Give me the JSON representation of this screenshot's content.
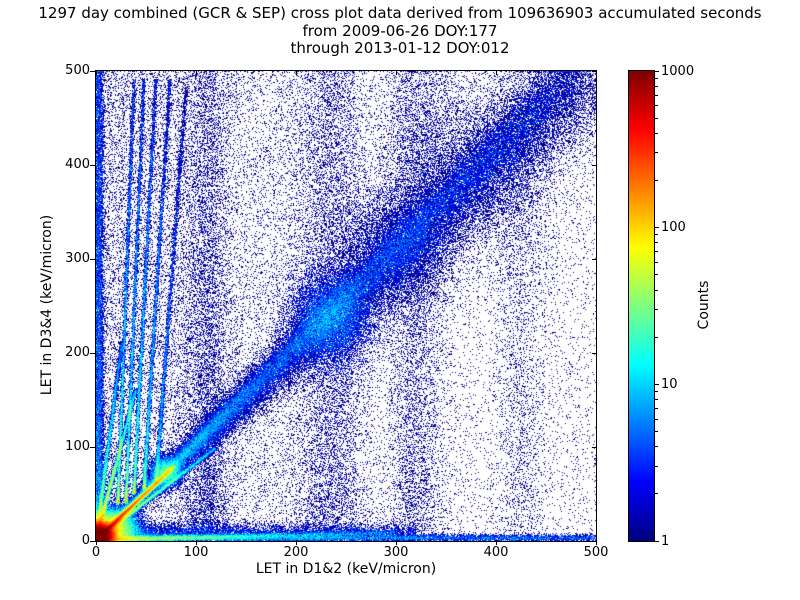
{
  "chart_data": {
    "type": "heatmap",
    "title": "1297 day combined (GCR & SEP) cross plot data derived from 109636903 accumulated seconds",
    "subtitle1": "from 2009-06-26 DOY:177",
    "subtitle2": "through 2013-01-12 DOY:012",
    "xlabel": "LET in D1&2 (keV/micron)",
    "ylabel": "LET in D3&4 (keV/micron)",
    "xlim": [
      0,
      500
    ],
    "ylim": [
      0,
      500
    ],
    "xticks": [
      0,
      100,
      200,
      300,
      400,
      500
    ],
    "yticks": [
      0,
      100,
      200,
      300,
      400,
      500
    ],
    "grid": false,
    "colorbar": {
      "label": "Counts",
      "scale": "log",
      "min": 1,
      "max": 1000,
      "ticks": [
        1,
        10,
        100,
        1000
      ],
      "colormap": "jet",
      "color_low": "#00007f",
      "color_high": "#7f0000"
    },
    "features": [
      {
        "kind": "uniform",
        "x0": 0,
        "x1": 500,
        "y0": 0,
        "y1": 500,
        "n": 14000,
        "w": 1
      },
      {
        "kind": "uniform",
        "x0": 0,
        "x1": 260,
        "y0": 0,
        "y1": 500,
        "n": 9000,
        "w": 1
      },
      {
        "kind": "uniform",
        "x0": 0,
        "x1": 120,
        "y0": 0,
        "y1": 500,
        "n": 6000,
        "w": 1
      },
      {
        "kind": "vcloud",
        "cx": 3,
        "sx": 2.5,
        "y0": 0,
        "y1": 500,
        "n": 12000,
        "w": 1.2,
        "bias": 1.6
      },
      {
        "kind": "hcloud",
        "cy": 2,
        "sy": 2,
        "x0": 0,
        "x1": 500,
        "n": 15000,
        "w": 1.5,
        "bias": 2.2
      },
      {
        "kind": "band",
        "x0": 0,
        "y0": 0,
        "x1": 500,
        "y1": 500,
        "w0": 4,
        "w1": 55,
        "n": 42000,
        "wt": 1,
        "bias": 1.25
      },
      {
        "kind": "band",
        "x0": 0,
        "y0": 0,
        "x1": 480,
        "y1": 500,
        "w0": 2,
        "w1": 28,
        "n": 24000,
        "wt": 1,
        "bias": 1.15
      },
      {
        "kind": "gauss",
        "cx": 235,
        "cy": 235,
        "sx": 22,
        "sy": 26,
        "n": 9000,
        "w": 1.5
      },
      {
        "kind": "gauss",
        "cx": 300,
        "cy": 310,
        "sx": 30,
        "sy": 35,
        "n": 7000,
        "w": 1
      },
      {
        "kind": "gauss",
        "cx": 370,
        "cy": 395,
        "sx": 45,
        "sy": 50,
        "n": 6000,
        "w": 1
      },
      {
        "kind": "gauss",
        "cx": 5,
        "cy": 5,
        "sx": 6,
        "sy": 6,
        "n": 90000,
        "w": 4
      },
      {
        "kind": "gauss",
        "cx": 14,
        "cy": 12,
        "sx": 12,
        "sy": 10,
        "n": 30000,
        "w": 2
      },
      {
        "kind": "line",
        "x0": 0,
        "y0": 0,
        "x1": 78,
        "y1": 78,
        "wd": 2.5,
        "n": 26000,
        "wt0": 5,
        "wt1": 1.5,
        "bias": 1.8
      },
      {
        "kind": "line",
        "x0": 0,
        "y0": 0,
        "x1": 120,
        "y1": 98,
        "wd": 2,
        "n": 8000,
        "wt0": 3,
        "wt1": 0.8,
        "bias": 2.2
      },
      {
        "kind": "line",
        "x0": 0,
        "y0": 0,
        "x1": 40,
        "y1": 160,
        "wd": 2,
        "n": 8000,
        "wt0": 4,
        "wt1": 1,
        "bias": 2
      },
      {
        "kind": "line",
        "x0": 0,
        "y0": 0,
        "x1": 26,
        "y1": 210,
        "wd": 2,
        "n": 6000,
        "wt0": 3.5,
        "wt1": 0.8,
        "bias": 2.1
      },
      {
        "kind": "line",
        "x0": 22,
        "y0": 40,
        "x1": 38,
        "y1": 490,
        "wd": 1.6,
        "n": 5200,
        "wt0": 3,
        "wt1": 0.8,
        "bias": 1.8
      },
      {
        "kind": "line",
        "x0": 30,
        "y0": 40,
        "x1": 48,
        "y1": 490,
        "wd": 1.6,
        "n": 5200,
        "wt0": 3,
        "wt1": 0.8,
        "bias": 1.8
      },
      {
        "kind": "line",
        "x0": 38,
        "y0": 50,
        "x1": 60,
        "y1": 490,
        "wd": 1.7,
        "n": 5000,
        "wt0": 3,
        "wt1": 0.8,
        "bias": 1.8
      },
      {
        "kind": "line",
        "x0": 48,
        "y0": 55,
        "x1": 74,
        "y1": 490,
        "wd": 1.8,
        "n": 4600,
        "wt0": 2.5,
        "wt1": 0.7,
        "bias": 1.8
      },
      {
        "kind": "line",
        "x0": 60,
        "y0": 60,
        "x1": 90,
        "y1": 480,
        "wd": 2,
        "n": 3800,
        "wt0": 2,
        "wt1": 0.6,
        "bias": 1.8
      },
      {
        "kind": "gauss",
        "cx": 70,
        "cy": 72,
        "sx": 8,
        "sy": 8,
        "n": 5000,
        "w": 1.5
      },
      {
        "kind": "vcloud",
        "cx": 112,
        "sx": 14,
        "y0": 0,
        "y1": 500,
        "n": 6000,
        "w": 1,
        "bias": 1.5
      },
      {
        "kind": "vcloud",
        "cx": 235,
        "sx": 20,
        "y0": 0,
        "y1": 500,
        "n": 7000,
        "w": 1,
        "bias": 1.2
      },
      {
        "kind": "vcloud",
        "cx": 320,
        "sx": 16,
        "y0": 0,
        "y1": 500,
        "n": 6000,
        "w": 1,
        "bias": 1.1
      },
      {
        "kind": "vcloud",
        "cx": 425,
        "sx": 14,
        "y0": 0,
        "y1": 500,
        "n": 2500,
        "w": 1,
        "bias": 1
      },
      {
        "kind": "hcloud",
        "cy": 8,
        "sy": 5,
        "x0": 0,
        "x1": 320,
        "n": 8000,
        "w": 1.2,
        "bias": 1.8
      },
      {
        "kind": "line",
        "x0": 0,
        "y0": 0,
        "x1": 300,
        "y1": 8,
        "wd": 3,
        "n": 8000,
        "wt0": 4,
        "wt1": 1,
        "bias": 2.5
      }
    ]
  }
}
